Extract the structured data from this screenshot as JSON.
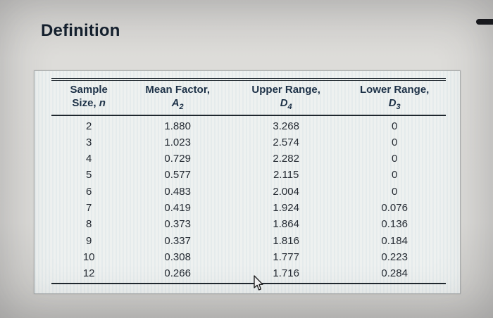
{
  "page": {
    "title": "Definition"
  },
  "window": {
    "corner_mark": "dark-dash"
  },
  "table": {
    "headers": [
      {
        "line1": "Sample",
        "line2_prefix": "Size, ",
        "symbol": "n",
        "sub": ""
      },
      {
        "line1": "Mean Factor,",
        "line2_prefix": "",
        "symbol": "A",
        "sub": "2"
      },
      {
        "line1": "Upper Range,",
        "line2_prefix": "",
        "symbol": "D",
        "sub": "4"
      },
      {
        "line1": "Lower Range,",
        "line2_prefix": "",
        "symbol": "D",
        "sub": "3"
      }
    ]
  },
  "chart_data": {
    "type": "table",
    "title": "Definition",
    "columns": [
      "Sample Size, n",
      "Mean Factor, A2",
      "Upper Range, D4",
      "Lower Range, D3"
    ],
    "rows": [
      [
        "2",
        "1.880",
        "3.268",
        "0"
      ],
      [
        "3",
        "1.023",
        "2.574",
        "0"
      ],
      [
        "4",
        "0.729",
        "2.282",
        "0"
      ],
      [
        "5",
        "0.577",
        "2.115",
        "0"
      ],
      [
        "6",
        "0.483",
        "2.004",
        "0"
      ],
      [
        "7",
        "0.419",
        "1.924",
        "0.076"
      ],
      [
        "8",
        "0.373",
        "1.864",
        "0.136"
      ],
      [
        "9",
        "0.337",
        "1.816",
        "0.184"
      ],
      [
        "10",
        "0.308",
        "1.777",
        "0.223"
      ],
      [
        "12",
        "0.266",
        "1.716",
        "0.284"
      ]
    ]
  }
}
